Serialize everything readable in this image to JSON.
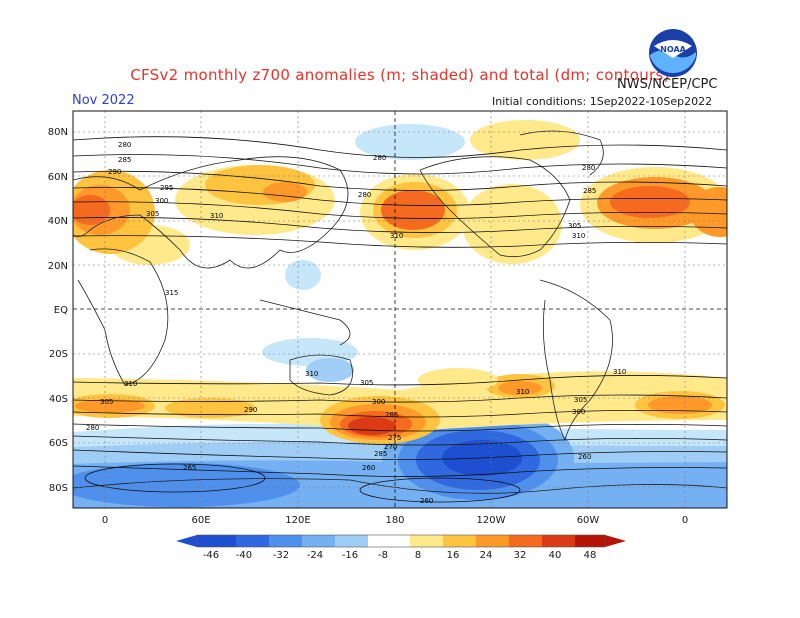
{
  "header": {
    "title": "CFSv2 monthly z700 anomalies (m; shaded) and total (dm; contours)",
    "month": "Nov 2022",
    "agency": "NWS/NCEP/CPC",
    "initial_conditions": "Initial conditions: 1Sep2022-10Sep2022",
    "logo_text": "NOAA"
  },
  "colors": {
    "neg46": "#1f4fd1",
    "neg40": "#3068e0",
    "neg32": "#4e90ec",
    "neg24": "#74b0f2",
    "neg16": "#9fcdf6",
    "neg8": "#c6e6fa",
    "zero": "#ffffff",
    "pos8": "#ffe98a",
    "pos16": "#ffc43f",
    "pos24": "#ff9a2a",
    "pos32": "#f56a1e",
    "pos40": "#dc3a14",
    "pos48": "#b51406",
    "title": "#e8322a",
    "month": "#2b3fd6"
  },
  "map_labels": {
    "lat": [
      "80N",
      "60N",
      "40N",
      "20N",
      "EQ",
      "20S",
      "40S",
      "60S",
      "80S"
    ],
    "lon": [
      "0",
      "60E",
      "120E",
      "180",
      "120W",
      "60W",
      "0"
    ]
  },
  "colorbar": {
    "ticks": [
      "-46",
      "-40",
      "-32",
      "-24",
      "-16",
      "-8",
      "8",
      "16",
      "24",
      "32",
      "40",
      "48"
    ]
  },
  "contour_labels": [
    "280",
    "285",
    "290",
    "295",
    "300",
    "305",
    "310",
    "315",
    "260",
    "265",
    "270",
    "275"
  ]
}
